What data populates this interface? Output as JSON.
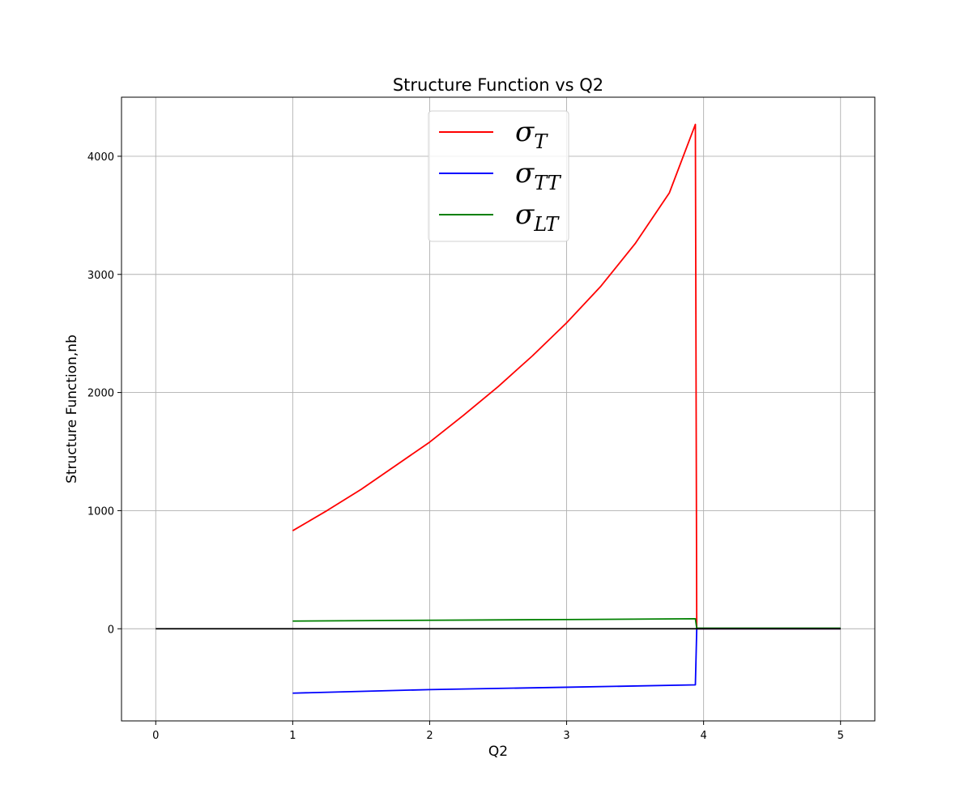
{
  "chart_data": {
    "type": "line",
    "title": "Structure Function vs Q2",
    "xlabel": "Q2",
    "ylabel": "Structure Function,nb",
    "xlim": [
      -0.25,
      5.25
    ],
    "ylim": [
      -780,
      4500
    ],
    "xticks": [
      0,
      1,
      2,
      3,
      4,
      5
    ],
    "yticks": [
      0,
      1000,
      2000,
      3000,
      4000
    ],
    "grid": true,
    "legend_position": "top-center",
    "series": [
      {
        "name": "σT",
        "symbol": "σ",
        "subscript": "T",
        "color": "#ff0000",
        "x": [
          1.0,
          1.25,
          1.5,
          1.75,
          2.0,
          2.25,
          2.5,
          2.75,
          3.0,
          3.25,
          3.5,
          3.75,
          3.94,
          3.95,
          5.0
        ],
        "y": [
          830,
          1000,
          1180,
          1380,
          1580,
          1810,
          2050,
          2310,
          2590,
          2900,
          3260,
          3690,
          4270,
          0,
          0
        ]
      },
      {
        "name": "σTT",
        "symbol": "σ",
        "subscript": "TT",
        "color": "#0000ff",
        "x": [
          1.0,
          2.0,
          3.0,
          3.94,
          3.95,
          5.0
        ],
        "y": [
          -545,
          -515,
          -495,
          -475,
          0,
          0
        ]
      },
      {
        "name": "σLT",
        "symbol": "σ",
        "subscript": "LT",
        "color": "#008000",
        "x": [
          1.0,
          2.0,
          3.0,
          3.94,
          3.95,
          5.0
        ],
        "y": [
          65,
          72,
          78,
          85,
          5,
          5
        ]
      },
      {
        "name": "",
        "color": "#000000",
        "x": [
          0.0,
          5.0
        ],
        "y": [
          0,
          0
        ]
      }
    ]
  }
}
